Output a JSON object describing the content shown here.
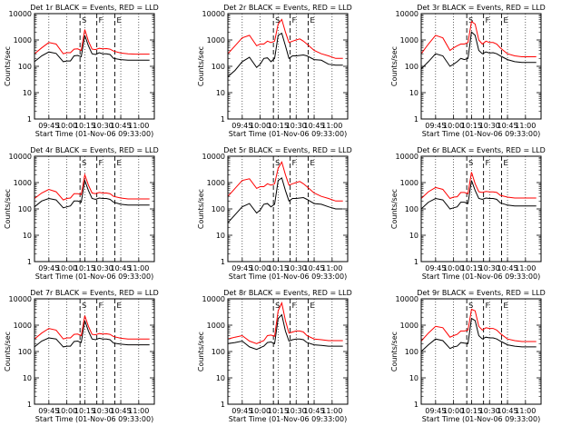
{
  "figure": {
    "y_axis_label": "Counts/sec",
    "x_axis_label": "Start Time (01-Nov-06 09:33:00)",
    "y_tick_labels": [
      "10000",
      "1000",
      "100",
      "10",
      "1"
    ],
    "x_tick_labels": [
      "09:45",
      "10:00",
      "10:15",
      "10:30",
      "10:45",
      "11:00"
    ],
    "marker_labels": [
      "S",
      "F",
      "E"
    ],
    "colors": {
      "events": "#000000",
      "lld": "#ff0000",
      "axis": "#000000"
    }
  },
  "chart_data": [
    {
      "type": "line",
      "title": "Det 1r BLACK = Events, RED = LLD",
      "xlabel": "Start Time (01-Nov-06 09:33:00)",
      "ylabel": "Counts/sec",
      "yscale": "log",
      "ylim": [
        1,
        10000
      ],
      "xlim": [
        "09:33",
        "11:13"
      ],
      "x": [
        "09:33",
        "09:39",
        "09:45",
        "09:51",
        "09:57",
        "10:00",
        "10:03",
        "10:06",
        "10:09",
        "10:12",
        "10:15",
        "10:18",
        "10:21",
        "10:24",
        "10:27",
        "10:30",
        "10:33",
        "10:36",
        "10:39",
        "10:45",
        "10:51",
        "10:57",
        "11:03",
        "11:09"
      ],
      "series": [
        {
          "name": "Events",
          "color": "#000000",
          "values": [
            150,
            250,
            350,
            310,
            150,
            160,
            160,
            250,
            260,
            230,
            1500,
            600,
            300,
            280,
            330,
            300,
            300,
            280,
            200,
            180,
            170,
            170,
            170,
            170
          ]
        },
        {
          "name": "LLD",
          "color": "#ff0000",
          "values": [
            300,
            500,
            800,
            700,
            300,
            330,
            330,
            450,
            460,
            400,
            2500,
            900,
            450,
            430,
            480,
            460,
            470,
            450,
            380,
            320,
            300,
            290,
            290,
            290
          ]
        }
      ],
      "marker_lines": [
        {
          "label": "S",
          "x": "10:11",
          "style": "dashed"
        },
        {
          "label": "F",
          "x": "10:25",
          "style": "dashed"
        },
        {
          "label": "E",
          "x": "10:40",
          "style": "dashed"
        }
      ]
    },
    {
      "type": "line",
      "title": "Det 2r BLACK = Events, RED = LLD",
      "xlabel": "Start Time (01-Nov-06 09:33:00)",
      "ylabel": "Counts/sec",
      "yscale": "log",
      "ylim": [
        1,
        10000
      ],
      "xlim": [
        "09:33",
        "11:13"
      ],
      "x": [
        "09:33",
        "09:39",
        "09:45",
        "09:51",
        "09:57",
        "10:00",
        "10:03",
        "10:06",
        "10:09",
        "10:12",
        "10:15",
        "10:18",
        "10:21",
        "10:24",
        "10:27",
        "10:30",
        "10:33",
        "10:36",
        "10:39",
        "10:45",
        "10:51",
        "10:57",
        "11:03",
        "11:09"
      ],
      "series": [
        {
          "name": "Events",
          "color": "#000000",
          "values": [
            40,
            70,
            150,
            220,
            90,
            120,
            200,
            210,
            150,
            200,
            1500,
            1800,
            600,
            200,
            250,
            250,
            260,
            270,
            250,
            180,
            170,
            120,
            110,
            110
          ]
        },
        {
          "name": "LLD",
          "color": "#ff0000",
          "values": [
            300,
            600,
            1200,
            1500,
            600,
            700,
            700,
            900,
            800,
            900,
            4000,
            6000,
            2000,
            800,
            900,
            1000,
            1100,
            900,
            700,
            400,
            300,
            250,
            200,
            200
          ]
        }
      ],
      "marker_lines": [
        {
          "label": "S",
          "x": "10:11",
          "style": "dashed"
        },
        {
          "label": "F",
          "x": "10:25",
          "style": "dashed"
        },
        {
          "label": "E",
          "x": "10:40",
          "style": "dashed"
        }
      ]
    },
    {
      "type": "line",
      "title": "Det 3r BLACK = Events, RED = LLD",
      "xlabel": "Start Time (01-Nov-06 09:33:00)",
      "ylabel": "Counts/sec",
      "yscale": "log",
      "ylim": [
        1,
        10000
      ],
      "xlim": [
        "09:33",
        "11:13"
      ],
      "x": [
        "09:33",
        "09:39",
        "09:45",
        "09:51",
        "09:57",
        "10:00",
        "10:03",
        "10:06",
        "10:09",
        "10:12",
        "10:15",
        "10:18",
        "10:21",
        "10:24",
        "10:27",
        "10:30",
        "10:33",
        "10:36",
        "10:39",
        "10:45",
        "10:51",
        "10:57",
        "11:03",
        "11:09"
      ],
      "series": [
        {
          "name": "Events",
          "color": "#000000",
          "values": [
            80,
            150,
            300,
            250,
            100,
            120,
            150,
            200,
            180,
            200,
            2000,
            1500,
            400,
            300,
            350,
            320,
            330,
            300,
            250,
            180,
            150,
            140,
            140,
            140
          ]
        },
        {
          "name": "LLD",
          "color": "#ff0000",
          "values": [
            300,
            700,
            1500,
            1200,
            400,
            500,
            600,
            700,
            700,
            800,
            5000,
            4000,
            1000,
            700,
            900,
            800,
            800,
            700,
            500,
            300,
            250,
            230,
            230,
            230
          ]
        }
      ],
      "marker_lines": [
        {
          "label": "S",
          "x": "10:11",
          "style": "dashed"
        },
        {
          "label": "F",
          "x": "10:25",
          "style": "dashed"
        },
        {
          "label": "E",
          "x": "10:40",
          "style": "dashed"
        }
      ]
    },
    {
      "type": "line",
      "title": "Det 4r BLACK = Events, RED = LLD",
      "xlabel": "Start Time (01-Nov-06 09:33:00)",
      "ylabel": "Counts/sec",
      "yscale": "log",
      "ylim": [
        1,
        10000
      ],
      "xlim": [
        "09:33",
        "11:13"
      ],
      "x": [
        "09:33",
        "09:39",
        "09:45",
        "09:51",
        "09:57",
        "10:00",
        "10:03",
        "10:06",
        "10:09",
        "10:12",
        "10:15",
        "10:18",
        "10:21",
        "10:24",
        "10:27",
        "10:30",
        "10:33",
        "10:36",
        "10:39",
        "10:45",
        "10:51",
        "10:57",
        "11:03",
        "11:09"
      ],
      "series": [
        {
          "name": "Events",
          "color": "#000000",
          "values": [
            120,
            200,
            250,
            220,
            110,
            120,
            130,
            200,
            200,
            180,
            1200,
            500,
            250,
            230,
            260,
            250,
            250,
            230,
            180,
            150,
            140,
            140,
            140,
            140
          ]
        },
        {
          "name": "LLD",
          "color": "#ff0000",
          "values": [
            250,
            400,
            550,
            450,
            220,
            250,
            260,
            380,
            380,
            350,
            2000,
            800,
            400,
            380,
            420,
            400,
            400,
            380,
            300,
            260,
            240,
            240,
            240,
            240
          ]
        }
      ],
      "marker_lines": [
        {
          "label": "S",
          "x": "10:11",
          "style": "dashed"
        },
        {
          "label": "F",
          "x": "10:25",
          "style": "dashed"
        },
        {
          "label": "E",
          "x": "10:40",
          "style": "dashed"
        }
      ]
    },
    {
      "type": "line",
      "title": "Det 5r BLACK = Events, RED = LLD",
      "xlabel": "Start Time (01-Nov-06 09:33:00)",
      "ylabel": "Counts/sec",
      "yscale": "log",
      "ylim": [
        1,
        10000
      ],
      "xlim": [
        "09:33",
        "11:13"
      ],
      "x": [
        "09:33",
        "09:39",
        "09:45",
        "09:51",
        "09:57",
        "10:00",
        "10:03",
        "10:06",
        "10:09",
        "10:12",
        "10:15",
        "10:18",
        "10:21",
        "10:24",
        "10:27",
        "10:30",
        "10:33",
        "10:36",
        "10:39",
        "10:45",
        "10:51",
        "10:57",
        "11:03",
        "11:09"
      ],
      "series": [
        {
          "name": "Events",
          "color": "#000000",
          "values": [
            30,
            60,
            120,
            160,
            70,
            90,
            150,
            160,
            120,
            150,
            1200,
            1500,
            500,
            200,
            250,
            250,
            260,
            270,
            230,
            160,
            150,
            120,
            100,
            100
          ]
        },
        {
          "name": "LLD",
          "color": "#ff0000",
          "values": [
            300,
            600,
            1200,
            1400,
            600,
            700,
            700,
            900,
            800,
            900,
            3500,
            6000,
            2000,
            800,
            900,
            1000,
            1100,
            900,
            700,
            400,
            300,
            250,
            200,
            200
          ]
        }
      ],
      "marker_lines": [
        {
          "label": "S",
          "x": "10:11",
          "style": "dashed"
        },
        {
          "label": "F",
          "x": "10:25",
          "style": "dashed"
        },
        {
          "label": "E",
          "x": "10:40",
          "style": "dashed"
        }
      ]
    },
    {
      "type": "line",
      "title": "Det 6r BLACK = Events, RED = LLD",
      "xlabel": "Start Time (01-Nov-06 09:33:00)",
      "ylabel": "Counts/sec",
      "yscale": "log",
      "ylim": [
        1,
        10000
      ],
      "xlim": [
        "09:33",
        "11:13"
      ],
      "x": [
        "09:33",
        "09:39",
        "09:45",
        "09:51",
        "09:57",
        "10:00",
        "10:03",
        "10:06",
        "10:09",
        "10:12",
        "10:15",
        "10:18",
        "10:21",
        "10:24",
        "10:27",
        "10:30",
        "10:33",
        "10:36",
        "10:39",
        "10:45",
        "10:51",
        "10:57",
        "11:03",
        "11:09"
      ],
      "series": [
        {
          "name": "Events",
          "color": "#000000",
          "values": [
            100,
            180,
            250,
            220,
            100,
            110,
            120,
            180,
            180,
            160,
            1200,
            500,
            250,
            230,
            260,
            250,
            250,
            230,
            170,
            140,
            130,
            130,
            130,
            130
          ]
        },
        {
          "name": "LLD",
          "color": "#ff0000",
          "values": [
            250,
            450,
            650,
            550,
            250,
            280,
            290,
            420,
            420,
            380,
            2500,
            900,
            450,
            420,
            460,
            440,
            440,
            420,
            330,
            280,
            260,
            260,
            260,
            260
          ]
        }
      ],
      "marker_lines": [
        {
          "label": "S",
          "x": "10:11",
          "style": "dashed"
        },
        {
          "label": "F",
          "x": "10:25",
          "style": "dashed"
        },
        {
          "label": "E",
          "x": "10:40",
          "style": "dashed"
        }
      ]
    },
    {
      "type": "line",
      "title": "Det 7r BLACK = Events, RED = LLD",
      "xlabel": "Start Time (01-Nov-06 09:33:00)",
      "ylabel": "Counts/sec",
      "yscale": "log",
      "ylim": [
        1,
        10000
      ],
      "xlim": [
        "09:33",
        "11:13"
      ],
      "x": [
        "09:33",
        "09:39",
        "09:45",
        "09:51",
        "09:57",
        "10:00",
        "10:03",
        "10:06",
        "10:09",
        "10:12",
        "10:15",
        "10:18",
        "10:21",
        "10:24",
        "10:27",
        "10:30",
        "10:33",
        "10:36",
        "10:39",
        "10:45",
        "10:51",
        "10:57",
        "11:03",
        "11:09"
      ],
      "series": [
        {
          "name": "Events",
          "color": "#000000",
          "values": [
            150,
            250,
            330,
            300,
            150,
            160,
            160,
            240,
            250,
            220,
            1500,
            600,
            300,
            280,
            320,
            300,
            300,
            280,
            210,
            190,
            180,
            180,
            180,
            180
          ]
        },
        {
          "name": "LLD",
          "color": "#ff0000",
          "values": [
            300,
            500,
            750,
            650,
            300,
            330,
            330,
            450,
            460,
            400,
            2300,
            900,
            450,
            430,
            480,
            460,
            470,
            450,
            370,
            320,
            300,
            300,
            300,
            300
          ]
        }
      ],
      "marker_lines": [
        {
          "label": "S",
          "x": "10:11",
          "style": "dashed"
        },
        {
          "label": "F",
          "x": "10:25",
          "style": "dashed"
        },
        {
          "label": "E",
          "x": "10:40",
          "style": "dashed"
        }
      ]
    },
    {
      "type": "line",
      "title": "Det 8r BLACK = Events, RED = LLD",
      "xlabel": "Start Time (01-Nov-06 09:33:00)",
      "ylabel": "Counts/sec",
      "yscale": "log",
      "ylim": [
        1,
        10000
      ],
      "xlim": [
        "09:33",
        "11:13"
      ],
      "x": [
        "09:33",
        "09:39",
        "09:45",
        "09:51",
        "09:57",
        "10:00",
        "10:03",
        "10:06",
        "10:09",
        "10:12",
        "10:15",
        "10:18",
        "10:21",
        "10:24",
        "10:27",
        "10:30",
        "10:33",
        "10:36",
        "10:39",
        "10:45",
        "10:51",
        "10:57",
        "11:03",
        "11:09"
      ],
      "series": [
        {
          "name": "Events",
          "color": "#000000",
          "values": [
            200,
            220,
            250,
            150,
            120,
            140,
            160,
            220,
            230,
            200,
            1800,
            2500,
            600,
            250,
            280,
            300,
            300,
            280,
            220,
            180,
            170,
            160,
            160,
            160
          ]
        },
        {
          "name": "LLD",
          "color": "#ff0000",
          "values": [
            300,
            350,
            400,
            250,
            200,
            230,
            260,
            400,
            420,
            380,
            3500,
            7000,
            1500,
            500,
            550,
            600,
            600,
            550,
            400,
            300,
            280,
            260,
            260,
            260
          ]
        }
      ],
      "marker_lines": [
        {
          "label": "S",
          "x": "10:11",
          "style": "dashed"
        },
        {
          "label": "F",
          "x": "10:25",
          "style": "dashed"
        },
        {
          "label": "E",
          "x": "10:40",
          "style": "dashed"
        }
      ]
    },
    {
      "type": "line",
      "title": "Det 9r BLACK = Events, RED = LLD",
      "xlabel": "Start Time (01-Nov-06 09:33:00)",
      "ylabel": "Counts/sec",
      "yscale": "log",
      "ylim": [
        1,
        10000
      ],
      "xlim": [
        "09:33",
        "11:13"
      ],
      "x": [
        "09:33",
        "09:39",
        "09:45",
        "09:51",
        "09:57",
        "10:00",
        "10:03",
        "10:06",
        "10:09",
        "10:12",
        "10:15",
        "10:18",
        "10:21",
        "10:24",
        "10:27",
        "10:30",
        "10:33",
        "10:36",
        "10:39",
        "10:45",
        "10:51",
        "10:57",
        "11:03",
        "11:09"
      ],
      "series": [
        {
          "name": "Events",
          "color": "#000000",
          "values": [
            100,
            180,
            300,
            260,
            130,
            150,
            160,
            220,
            210,
            200,
            1800,
            1500,
            400,
            300,
            350,
            330,
            330,
            300,
            250,
            180,
            160,
            150,
            150,
            150
          ]
        },
        {
          "name": "LLD",
          "color": "#ff0000",
          "values": [
            250,
            500,
            900,
            800,
            350,
            400,
            450,
            600,
            600,
            650,
            4000,
            3500,
            900,
            650,
            800,
            750,
            750,
            650,
            480,
            300,
            260,
            240,
            240,
            240
          ]
        }
      ],
      "marker_lines": [
        {
          "label": "S",
          "x": "10:11",
          "style": "dashed"
        },
        {
          "label": "F",
          "x": "10:25",
          "style": "dashed"
        },
        {
          "label": "E",
          "x": "10:40",
          "style": "dashed"
        }
      ]
    }
  ]
}
